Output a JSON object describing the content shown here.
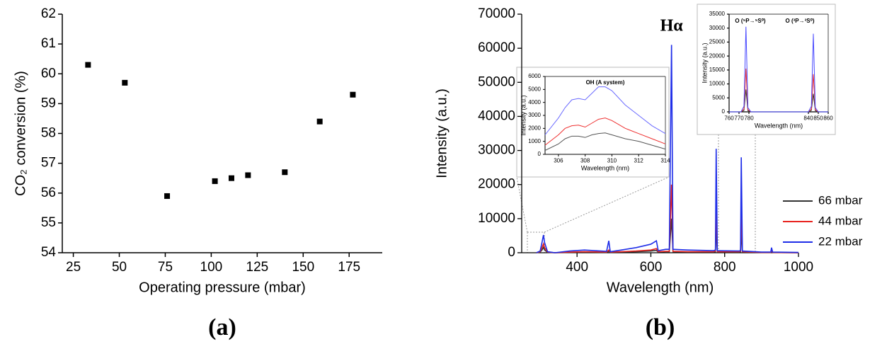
{
  "chart_data": [
    {
      "type": "scatter",
      "panel_label": "(a)",
      "x_label": "Operating pressure (mbar)",
      "y_label": "CO₂ conversion (%)",
      "x": [
        33,
        53,
        76,
        102,
        111,
        120,
        140,
        159,
        177
      ],
      "y": [
        60.3,
        59.7,
        55.9,
        56.4,
        56.5,
        56.6,
        56.7,
        58.4,
        59.3
      ],
      "color": "#000000",
      "xlim": [
        19,
        193
      ],
      "ylim": [
        54,
        62
      ],
      "xticks": [
        25,
        50,
        75,
        100,
        125,
        150,
        175
      ],
      "yticks": [
        54,
        55,
        56,
        57,
        58,
        59,
        60,
        61,
        62
      ]
    },
    {
      "type": "line",
      "panel_label": "(b)",
      "x_label": "Wavelength (nm)",
      "y_label": "Intensity (a.u.)",
      "annotation": "Hα",
      "x": [
        290,
        300,
        305,
        309,
        312,
        320,
        340,
        380,
        420,
        480,
        486,
        490,
        520,
        560,
        600,
        615,
        620,
        640,
        650,
        656,
        660,
        700,
        770,
        775,
        777,
        780,
        840,
        843,
        845,
        848,
        900,
        925,
        927,
        930,
        1000
      ],
      "series": [
        {
          "name": "66 mbar",
          "color": "#333333",
          "values": [
            0,
            200,
            800,
            1600,
            800,
            100,
            0,
            100,
            200,
            100,
            400,
            100,
            200,
            300,
            500,
            700,
            200,
            300,
            300,
            10000,
            300,
            200,
            200,
            300,
            8000,
            200,
            200,
            300,
            6500,
            200,
            100,
            100,
            300,
            100,
            0
          ]
        },
        {
          "name": "44 mbar",
          "color": "#e8231f",
          "values": [
            0,
            300,
            1500,
            2600,
            1500,
            200,
            0,
            200,
            300,
            200,
            800,
            200,
            300,
            500,
            800,
            1200,
            300,
            400,
            400,
            20000,
            400,
            300,
            300,
            500,
            15500,
            300,
            300,
            500,
            13500,
            300,
            100,
            100,
            600,
            100,
            0
          ]
        },
        {
          "name": "22 mbar",
          "color": "#1f2ee8",
          "values": [
            0,
            500,
            3000,
            5200,
            3000,
            300,
            0,
            500,
            800,
            400,
            3500,
            300,
            800,
            1500,
            2500,
            3500,
            600,
            1000,
            1000,
            61000,
            1000,
            800,
            600,
            800,
            30500,
            600,
            500,
            700,
            28000,
            500,
            200,
            200,
            1500,
            200,
            100
          ]
        }
      ],
      "xlim": [
        250,
        1000
      ],
      "ylim": [
        0,
        70000
      ],
      "xticks": [
        400,
        600,
        800,
        1000
      ],
      "yticks": [
        0,
        10000,
        20000,
        30000,
        40000,
        50000,
        60000,
        70000
      ],
      "legend": "lower right"
    },
    {
      "type": "line",
      "title": "OH (A system)",
      "x_label": "Wavelength (nm)",
      "y_label": "Intensity (a.u.)",
      "x": [
        305,
        306,
        306.5,
        307,
        307.5,
        308,
        308.5,
        309,
        309.5,
        310,
        311,
        312,
        313,
        314
      ],
      "series": [
        {
          "color": "#555555",
          "values": [
            300,
            800,
            1200,
            1400,
            1400,
            1300,
            1500,
            1600,
            1650,
            1500,
            1200,
            1000,
            700,
            400
          ]
        },
        {
          "color": "#ee3030",
          "values": [
            700,
            1500,
            2000,
            2200,
            2250,
            2100,
            2400,
            2700,
            2800,
            2600,
            2000,
            1600,
            1200,
            800
          ]
        },
        {
          "color": "#6a6aff",
          "values": [
            1500,
            2800,
            3600,
            4200,
            4300,
            4200,
            4700,
            5200,
            5200,
            4900,
            3800,
            3000,
            2200,
            1600
          ]
        }
      ],
      "xlim": [
        305,
        314
      ],
      "ylim": [
        0,
        6000
      ],
      "xticks": [
        306,
        308,
        310,
        312,
        314
      ],
      "yticks": [
        0,
        1000,
        2000,
        3000,
        4000,
        5000,
        6000
      ]
    },
    {
      "type": "line",
      "peak_labels": [
        "O (⁵P→⁵S⁰)",
        "O (³P→³S⁰)"
      ],
      "x_label": "Wavelength (nm)",
      "y_label": "Intensity (a.u.)",
      "x": [
        760,
        772,
        775,
        777,
        779,
        782,
        840,
        843,
        845,
        847,
        850,
        860
      ],
      "series": [
        {
          "color": "#333333",
          "values": [
            0,
            0,
            500,
            8000,
            400,
            0,
            0,
            500,
            6500,
            400,
            0,
            0
          ]
        },
        {
          "color": "#ee3030",
          "values": [
            0,
            0,
            1000,
            15500,
            800,
            0,
            0,
            1000,
            13500,
            800,
            0,
            0
          ]
        },
        {
          "color": "#4a4aff",
          "values": [
            0,
            0,
            2000,
            30500,
            1500,
            0,
            0,
            2000,
            28000,
            1500,
            0,
            0
          ]
        }
      ],
      "xlim": [
        760,
        860
      ],
      "ylim": [
        0,
        35000
      ],
      "xticks": [
        760,
        770,
        780,
        840,
        850,
        860
      ],
      "yticks": [
        0,
        5000,
        10000,
        15000,
        20000,
        25000,
        30000,
        35000
      ]
    }
  ]
}
